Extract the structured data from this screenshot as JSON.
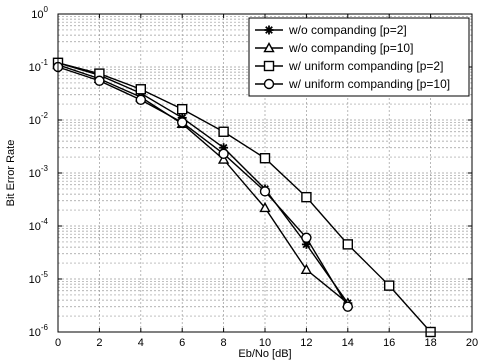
{
  "chart_data": {
    "type": "line",
    "xlabel": "Eb/No [dB]",
    "ylabel": "Bit Error Rate",
    "xlim": [
      0,
      20
    ],
    "ylim": [
      1e-06,
      1
    ],
    "yscale": "log",
    "grid": true,
    "legend_placement": "top-right",
    "x_ticks": [
      0,
      2,
      4,
      6,
      8,
      10,
      12,
      14,
      16,
      18,
      20
    ],
    "y_tick_exponents": [
      0,
      -1,
      -2,
      -3,
      -4,
      -5,
      -6
    ],
    "y_tick_base": "10",
    "series": [
      {
        "name": "w/o companding [p=2]",
        "marker": "asterisk",
        "x": [
          0,
          2,
          4,
          6,
          8,
          10,
          12,
          14
        ],
        "y": [
          0.12,
          0.07,
          0.032,
          0.011,
          0.003,
          0.0005,
          4.5e-05,
          3.5e-06
        ]
      },
      {
        "name": "w/o companding [p=10]",
        "marker": "triangle",
        "x": [
          0,
          2,
          4,
          6,
          8,
          10,
          12,
          14
        ],
        "y": [
          0.11,
          0.06,
          0.027,
          0.0085,
          0.0018,
          0.00022,
          1.5e-05,
          3.5e-06
        ]
      },
      {
        "name": "w/ uniform companding [p=2]",
        "marker": "square",
        "x": [
          0,
          2,
          4,
          6,
          8,
          10,
          12,
          14,
          16,
          18
        ],
        "y": [
          0.12,
          0.075,
          0.038,
          0.016,
          0.006,
          0.0019,
          0.00035,
          4.5e-05,
          7.5e-06,
          1e-06
        ]
      },
      {
        "name": "w/ uniform companding [p=10]",
        "marker": "circle",
        "x": [
          0,
          2,
          4,
          6,
          8,
          10,
          12,
          14
        ],
        "y": [
          0.1,
          0.055,
          0.024,
          0.009,
          0.0023,
          0.00045,
          6e-05,
          3e-06
        ]
      }
    ]
  },
  "colors": {
    "line": "#000000",
    "grid": "#9a9a9a",
    "background": "#ffffff"
  }
}
